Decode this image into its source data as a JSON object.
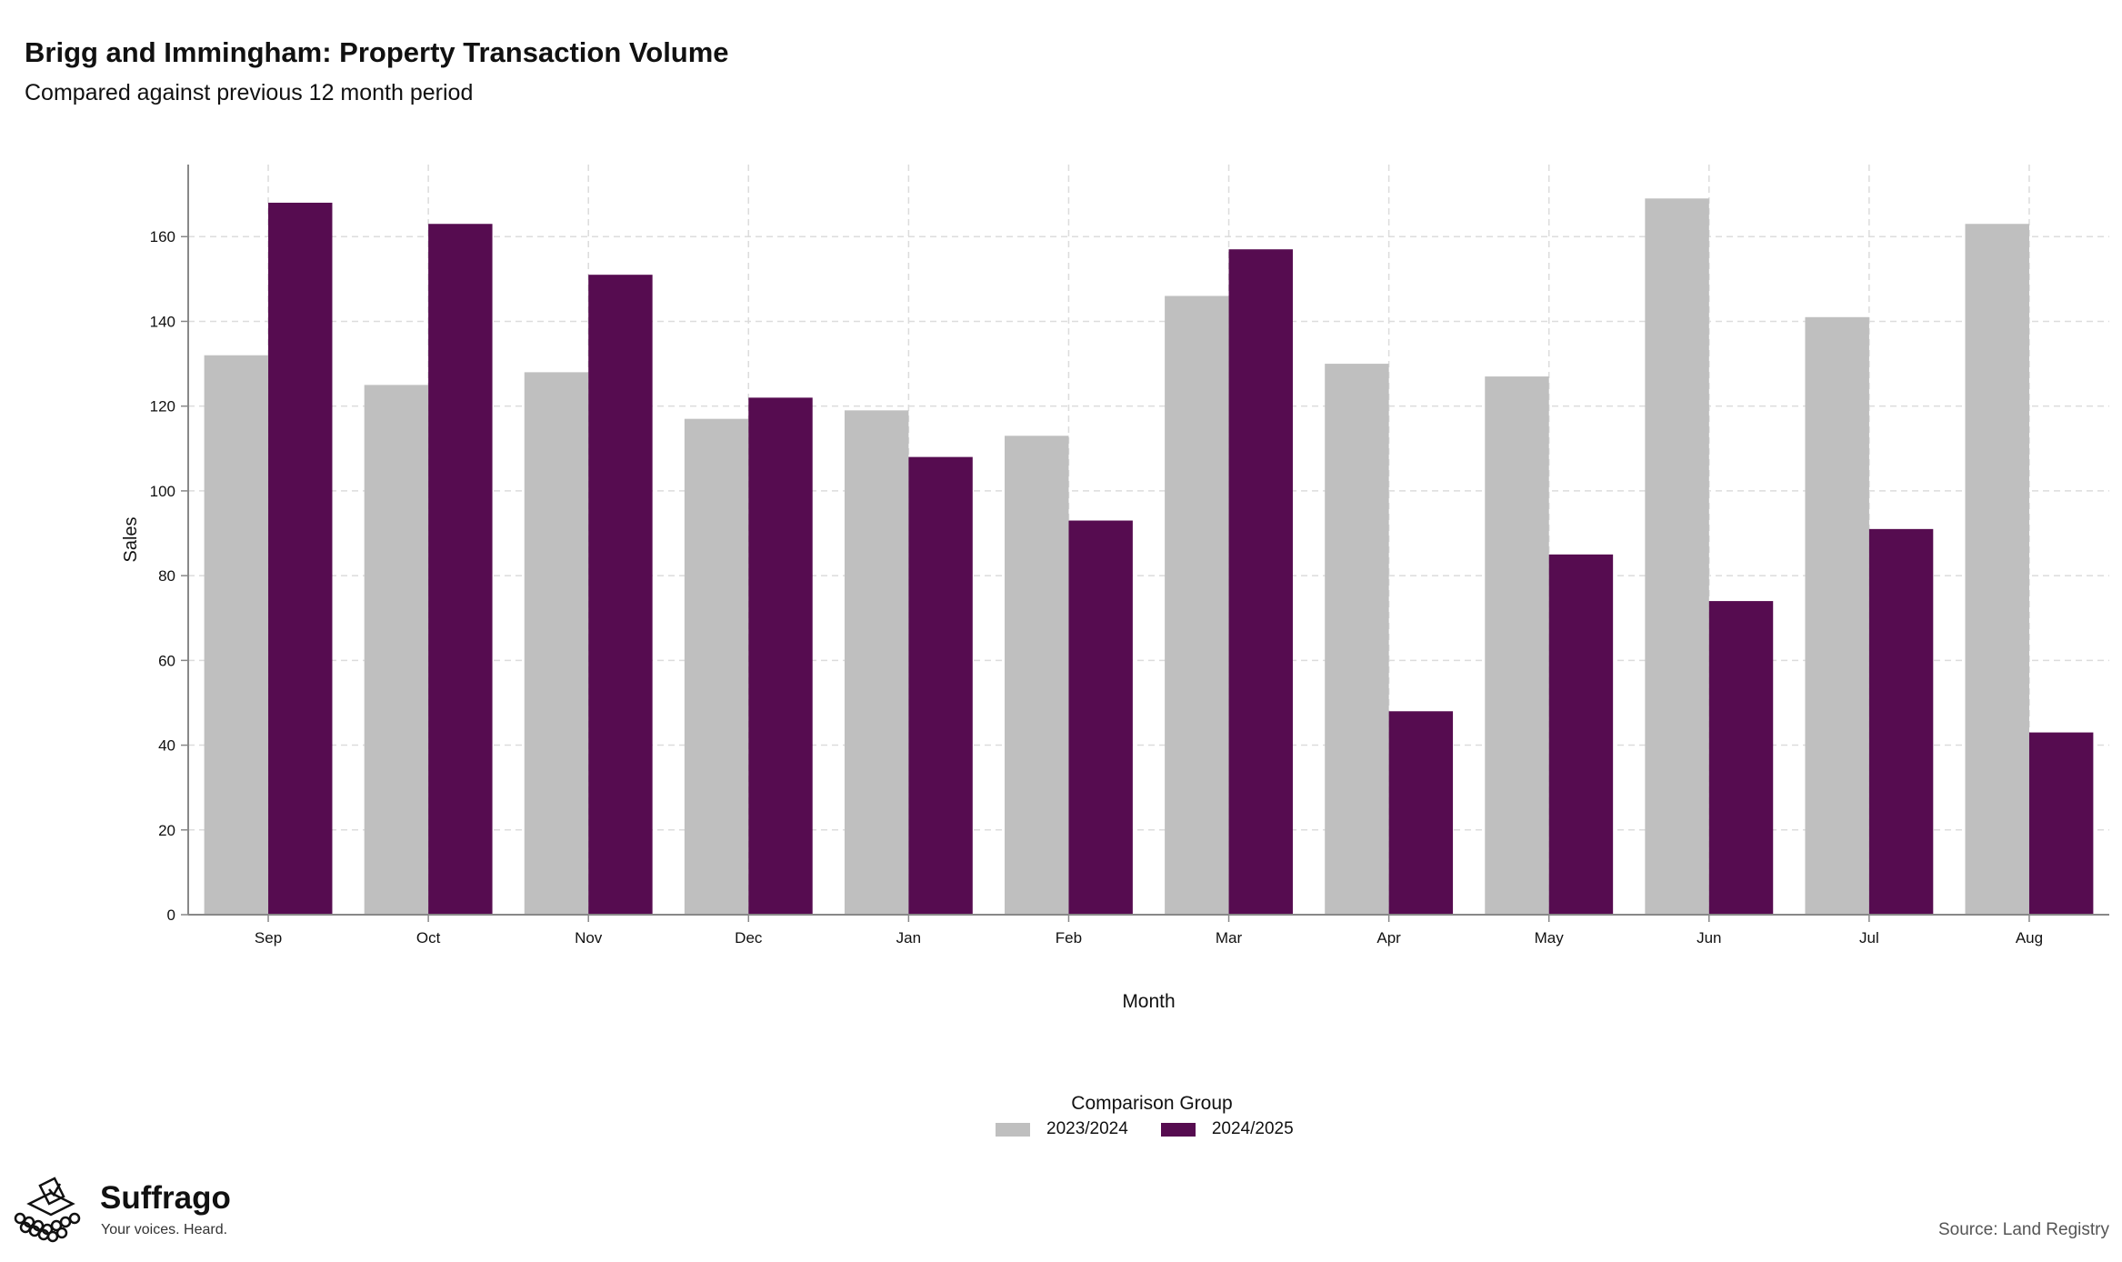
{
  "title": "Brigg and Immingham: Property Transaction Volume",
  "subtitle": "Compared against previous 12 month period",
  "source": "Source: Land Registry",
  "brand": {
    "name": "Suffrago",
    "tagline": "Your voices. Heard."
  },
  "legend": {
    "title": "Comparison Group"
  },
  "colors": {
    "series_2023": "#bfbfbf",
    "series_2024": "#560c50",
    "grid": "#dcdcdc",
    "axis": "#888888"
  },
  "chart_data": {
    "type": "bar",
    "xlabel": "Month",
    "ylabel": "Sales",
    "ylim": [
      0,
      177
    ],
    "yticks": [
      0,
      20,
      40,
      60,
      80,
      100,
      120,
      140,
      160
    ],
    "grid": true,
    "legend_position": "bottom",
    "categories": [
      "Sep",
      "Oct",
      "Nov",
      "Dec",
      "Jan",
      "Feb",
      "Mar",
      "Apr",
      "May",
      "Jun",
      "Jul",
      "Aug"
    ],
    "series": [
      {
        "name": "2023/2024",
        "values": [
          132,
          125,
          128,
          117,
          119,
          113,
          146,
          130,
          127,
          169,
          141,
          163
        ]
      },
      {
        "name": "2024/2025",
        "values": [
          168,
          163,
          151,
          122,
          108,
          93,
          157,
          48,
          85,
          74,
          91,
          43
        ]
      }
    ]
  }
}
